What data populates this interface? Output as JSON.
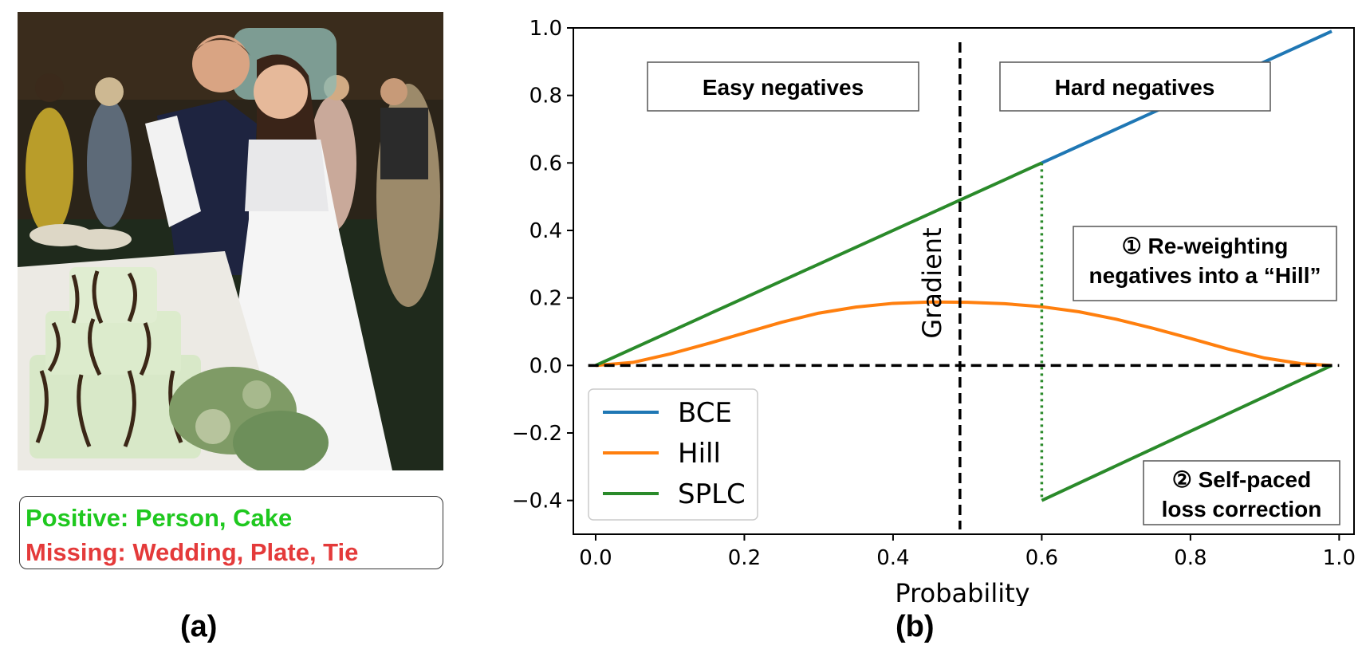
{
  "panel_a": {
    "photo_alt": "photo",
    "caption_positive": "Positive: Person, Cake",
    "caption_missing": "Missing: Wedding, Plate, Tie",
    "label": "(a)",
    "colors": {
      "positive": "#1fc81f",
      "missing": "#e43a3a"
    }
  },
  "panel_b": {
    "label": "(b)",
    "annotations": {
      "easy": "Easy negatives",
      "hard": "Hard negatives",
      "hill_line1": "① Re-weighting",
      "hill_line2": "negatives into a “Hill”",
      "splc_line1": "② Self-paced",
      "splc_line2": "loss correction"
    }
  },
  "chart_data": {
    "type": "line",
    "title": "",
    "xlabel": "Probability",
    "ylabel": "Gradient",
    "xlim": [
      -0.03,
      1.02
    ],
    "ylim": [
      -0.5,
      1.0
    ],
    "xticks": [
      0.0,
      0.2,
      0.4,
      0.6,
      0.8,
      1.0
    ],
    "xtick_labels": [
      "0.0",
      "0.2",
      "0.4",
      "0.6",
      "0.8",
      "1.0"
    ],
    "yticks": [
      1.0,
      0.8,
      0.6,
      0.4,
      0.2,
      0.0,
      -0.2,
      -0.4
    ],
    "ytick_labels": [
      "1.0",
      "0.8",
      "0.6",
      "0.4",
      "0.2",
      "0.0",
      "−0.2",
      "−0.4"
    ],
    "grid": false,
    "legend_position": "bottom-left",
    "reference_lines": {
      "vertical_dashed_x": 0.49,
      "horizontal_dashed_y": 0.0,
      "threshold_dotted_x": 0.6
    },
    "series": [
      {
        "name": "BCE",
        "color": "#1f77b4",
        "x": [
          0.6,
          0.99
        ],
        "y": [
          0.6,
          0.99
        ]
      },
      {
        "name": "Hill",
        "color": "#ff7f0e",
        "x": [
          0.0,
          0.05,
          0.1,
          0.15,
          0.2,
          0.25,
          0.3,
          0.35,
          0.4,
          0.45,
          0.5,
          0.55,
          0.6,
          0.65,
          0.7,
          0.75,
          0.8,
          0.85,
          0.9,
          0.95,
          0.99
        ],
        "y": [
          0.0,
          0.009,
          0.034,
          0.064,
          0.096,
          0.128,
          0.155,
          0.173,
          0.184,
          0.188,
          0.187,
          0.183,
          0.174,
          0.159,
          0.137,
          0.11,
          0.08,
          0.049,
          0.022,
          0.005,
          0.0
        ]
      },
      {
        "name": "SPLC",
        "color": "#2a8a2a",
        "segments": [
          {
            "x": [
              0.0,
              0.6
            ],
            "y": [
              0.0,
              0.6
            ]
          },
          {
            "x": [
              0.6,
              0.99
            ],
            "y": [
              -0.4,
              0.0
            ]
          }
        ]
      }
    ]
  }
}
